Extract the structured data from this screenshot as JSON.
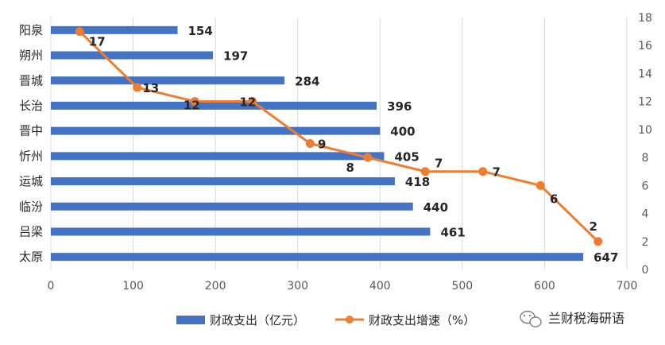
{
  "chart_data": {
    "type": "bar",
    "orientation": "horizontal",
    "categories": [
      "阳泉",
      "朔州",
      "晋城",
      "长治",
      "晋中",
      "忻州",
      "运城",
      "临汾",
      "吕梁",
      "太原"
    ],
    "series": [
      {
        "name": "财政支出（亿元）",
        "type": "bar",
        "axis": "x-bottom",
        "values": [
          154,
          197,
          284,
          396,
          400,
          405,
          418,
          440,
          461,
          647
        ],
        "color": "#4472C4"
      },
      {
        "name": "财政支出增速（%）",
        "type": "line",
        "axis": "y-right",
        "values": [
          17,
          13,
          12,
          12,
          9,
          8,
          7,
          7,
          6,
          2
        ],
        "color": "#ED7D31"
      }
    ],
    "line_x": [
      35,
      105,
      175,
      245,
      315,
      385,
      455,
      525,
      595,
      665
    ],
    "x_axis": {
      "min": 0,
      "max": 700,
      "ticks": [
        0,
        100,
        200,
        300,
        400,
        500,
        600,
        700
      ]
    },
    "y_right_axis": {
      "min": 0,
      "max": 18,
      "ticks": [
        0,
        2,
        4,
        6,
        8,
        10,
        12,
        14,
        16,
        18
      ]
    },
    "grid": true,
    "legend_position": "bottom",
    "title": "",
    "xlabel": "",
    "ylabel": ""
  },
  "watermark": {
    "text": "兰财税海研语",
    "icon": "wechat-icon"
  }
}
